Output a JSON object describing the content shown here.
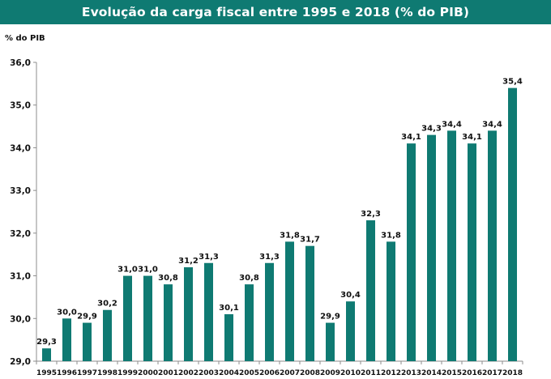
{
  "chart_data": {
    "type": "bar",
    "title": "Evolução da carga fiscal entre 1995 e 2018 (% do PIB)",
    "ylabel": "% do PIB",
    "xlabel": "",
    "ylim": [
      29.0,
      36.0
    ],
    "yticks": [
      "29,0",
      "30,0",
      "31,0",
      "32,0",
      "33,0",
      "34,0",
      "35,0",
      "36,0"
    ],
    "grid": false,
    "bar_color": "#0f7a72",
    "categories": [
      "1995",
      "1996",
      "1997",
      "1998",
      "1999",
      "2000",
      "2001",
      "2002",
      "2003",
      "2004",
      "2005",
      "2006",
      "2007",
      "2008",
      "2009",
      "2010",
      "2011",
      "2012",
      "2013",
      "2014",
      "2015",
      "2016",
      "2017",
      "2018"
    ],
    "values": [
      29.3,
      30.0,
      29.9,
      30.2,
      31.0,
      31.0,
      30.8,
      31.2,
      31.3,
      30.1,
      30.8,
      31.3,
      31.8,
      31.7,
      29.9,
      30.4,
      32.3,
      31.8,
      34.1,
      34.3,
      34.4,
      34.1,
      34.4,
      35.4
    ],
    "data_labels": [
      "29,3",
      "30,0",
      "29,9",
      "30,2",
      "31,0",
      "31,0",
      "30,8",
      "31,2",
      "31,3",
      "30,1",
      "30,8",
      "31,3",
      "31,8",
      "31,7",
      "29,9",
      "30,4",
      "32,3",
      "31,8",
      "34,1",
      "34,3",
      "34,4",
      "34,1",
      "34,4",
      "35,4"
    ]
  }
}
